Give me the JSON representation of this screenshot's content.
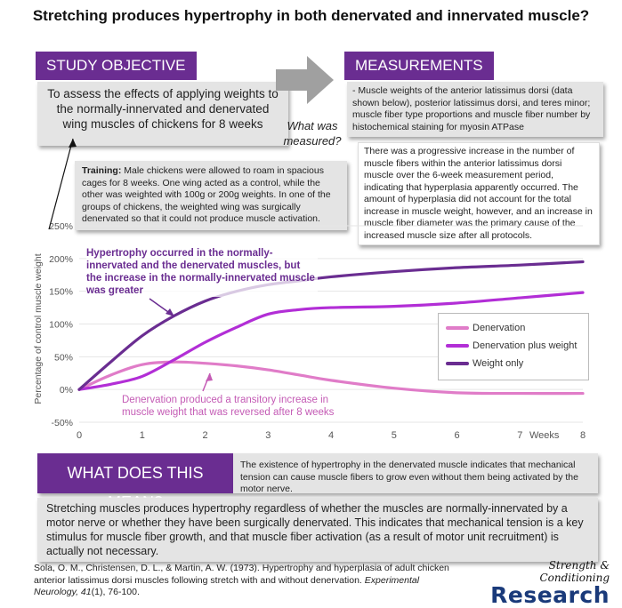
{
  "title": "Stretching produces hypertrophy in both denervated and innervated muscle?",
  "study_objective": {
    "header": "STUDY OBJECTIVE",
    "text": "To assess the effects of applying weights to the normally-innervated and denervated wing muscles of chickens for 8 weeks"
  },
  "what_measured": "What was measured?",
  "measurements": {
    "header": "MEASUREMENTS",
    "text": "- Muscle weights of the anterior latissimus dorsi (data shown below), posterior latissimus dorsi, and teres minor; muscle fiber type proportions and muscle fiber number by histochemical staining for myosin ATPase"
  },
  "training": {
    "label": "Training:",
    "text": " Male chickens were allowed to roam in spacious cages for 8 weeks. One wing acted as a control, while the other was weighted with 100g or 200g weights. In one of the groups of chickens, the weighted wing was surgically denervated so that it could not produce muscle activation."
  },
  "hyperplasia_note": "There was a progressive increase in the number of muscle fibers within the anterior latissimus dorsi muscle over the 6-week measurement period, indicating that hyperplasia apparently occurred. The amount of hyperplasia did not account for the total increase in muscle weight, however, and an increase in muscle fiber diameter was the primary cause of the increased muscle size after all protocols.",
  "annotations": {
    "hypertrophy": "Hypertrophy occurred in the normally-innervated and the denervated muscles, but the increase in the normally-innervated muscle was greater",
    "denervation": "Denervation produced a transitory increase in muscle weight that was reversed after 8 weeks"
  },
  "what_does_this_mean": {
    "header": "WHAT DOES THIS MEAN?",
    "side_text": "The existence of hypertrophy in the denervated muscle indicates that mechanical tension can cause muscle fibers to grow even without them being activated by the motor nerve.",
    "body": "Stretching muscles produces hypertrophy regardless of whether the muscles are normally-innervated by a motor nerve or whether they have been surgically denervated. This indicates that mechanical tension is a key stimulus for muscle fiber growth, and that muscle fiber activation (as a result of motor unit recruitment) is actually not necessary."
  },
  "citation": {
    "text": "Sola, O. M., Christensen, D. L., & Martin, A. W. (1973). Hypertrophy and hyperplasia of adult chicken anterior latissimus dorsi muscles following stretch with and without denervation. ",
    "journal": "Experimental Neurology, 41",
    "rest": "(1), 76-100."
  },
  "logo": {
    "line1": "Strength & Conditioning",
    "line2": "Research"
  },
  "chart_data": {
    "type": "line",
    "ylabel": "Percentage of control muscle weight",
    "xlabel": "Weeks",
    "xlim": [
      0,
      8
    ],
    "ylim": [
      -50,
      250
    ],
    "x_ticks": [
      0,
      1,
      2,
      3,
      4,
      5,
      6,
      7,
      8
    ],
    "y_ticks": [
      -50,
      0,
      50,
      100,
      150,
      200,
      250
    ],
    "y_tick_labels": [
      "-50%",
      "0%",
      "50%",
      "100%",
      "150%",
      "200%",
      "250%"
    ],
    "grid": "horizontal",
    "legend_position": "right",
    "series": [
      {
        "name": "Denervation",
        "color": "#e07cc8",
        "x": [
          0,
          0.5,
          1,
          1.5,
          2,
          2.5,
          3,
          3.5,
          4,
          5,
          6,
          7,
          8
        ],
        "values": [
          0,
          22,
          38,
          42,
          40,
          36,
          30,
          22,
          14,
          2,
          -5,
          -6,
          -6
        ]
      },
      {
        "name": "Denervation plus weight",
        "color": "#b22ed6",
        "x": [
          0,
          0.5,
          1,
          1.5,
          2,
          2.5,
          3,
          3.5,
          4,
          5,
          6,
          7,
          8
        ],
        "values": [
          0,
          8,
          20,
          45,
          72,
          95,
          115,
          122,
          125,
          127,
          132,
          140,
          148
        ]
      },
      {
        "name": "Weight only",
        "color": "#6a2d91",
        "x": [
          0,
          0.5,
          1,
          1.5,
          2,
          2.5,
          3,
          3.5,
          4,
          5,
          6,
          7,
          8
        ],
        "values": [
          0,
          42,
          82,
          112,
          135,
          150,
          160,
          166,
          172,
          180,
          186,
          190,
          195
        ]
      }
    ]
  }
}
